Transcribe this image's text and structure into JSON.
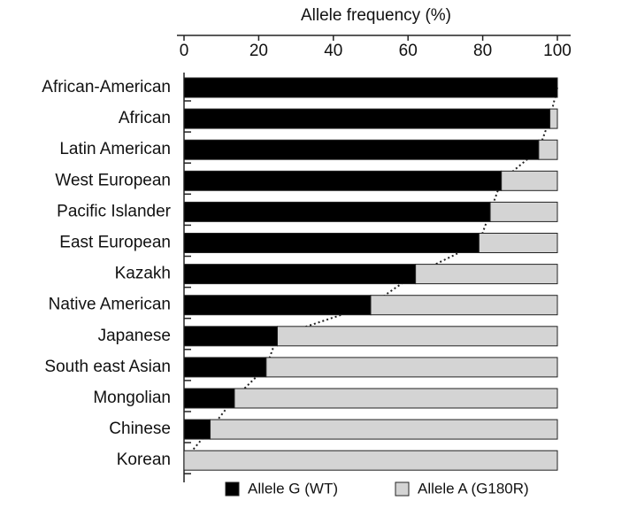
{
  "chart_data": {
    "type": "stacked_bar_h",
    "x_label": "Allele frequency (%)",
    "categories": [
      "African-American",
      "African",
      "Latin American",
      "West European",
      "Pacific Islander",
      "East European",
      "Kazakh",
      "Native American",
      "Japanese",
      "South east Asian",
      "Mongolian",
      "Chinese",
      "Korean"
    ],
    "series": [
      {
        "name": "Allele G (WT)",
        "color": "#000000",
        "values": [
          100,
          98,
          95,
          85,
          82,
          79,
          62,
          50,
          25,
          22,
          13.5,
          7,
          0
        ]
      },
      {
        "name": "Allele A (G180R)",
        "color": "#d4d4d4",
        "values": [
          0,
          2,
          5,
          15,
          18,
          21,
          38,
          50,
          75,
          78,
          86.5,
          93,
          100
        ]
      }
    ],
    "xlim": [
      0,
      100
    ],
    "xticks": [
      0,
      20,
      40,
      60,
      80,
      100
    ],
    "legend": "bottom"
  }
}
